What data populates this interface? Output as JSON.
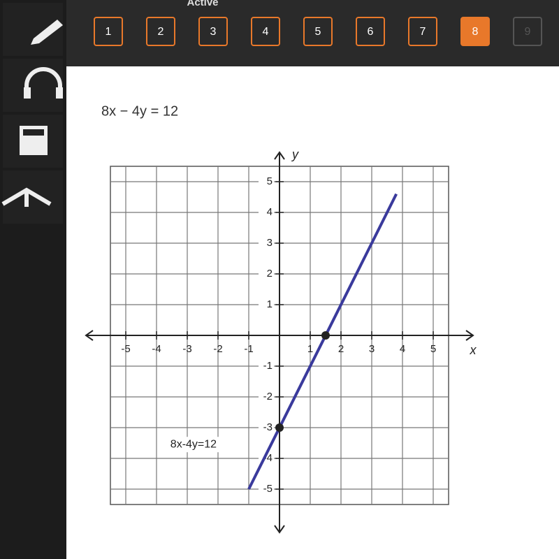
{
  "header": {
    "status": "Active"
  },
  "question_nav": {
    "buttons": [
      {
        "label": "1",
        "state": "done"
      },
      {
        "label": "2",
        "state": "done"
      },
      {
        "label": "3",
        "state": "done"
      },
      {
        "label": "4",
        "state": "done"
      },
      {
        "label": "5",
        "state": "done"
      },
      {
        "label": "6",
        "state": "done"
      },
      {
        "label": "7",
        "state": "done"
      },
      {
        "label": "8",
        "state": "current"
      },
      {
        "label": "9",
        "state": "locked"
      }
    ]
  },
  "question": {
    "equation": "8x − 4y = 12"
  },
  "graph": {
    "x_label": "x",
    "y_label": "y",
    "xlim": [
      -5.5,
      5.5
    ],
    "ylim": [
      -5.5,
      5.5
    ],
    "xticks": [
      -5,
      -4,
      -3,
      -2,
      -1,
      1,
      2,
      3,
      4,
      5
    ],
    "yticks": [
      -5,
      -4,
      -3,
      -2,
      -1,
      1,
      2,
      3,
      4,
      5
    ],
    "line": {
      "label": "8x-4y=12",
      "color": "#3a3a9c",
      "x": [
        -1,
        3.8
      ],
      "y": [
        -5,
        4.6
      ]
    },
    "points": {
      "x": [
        1.5,
        0
      ],
      "y": [
        0,
        -3
      ]
    }
  }
}
